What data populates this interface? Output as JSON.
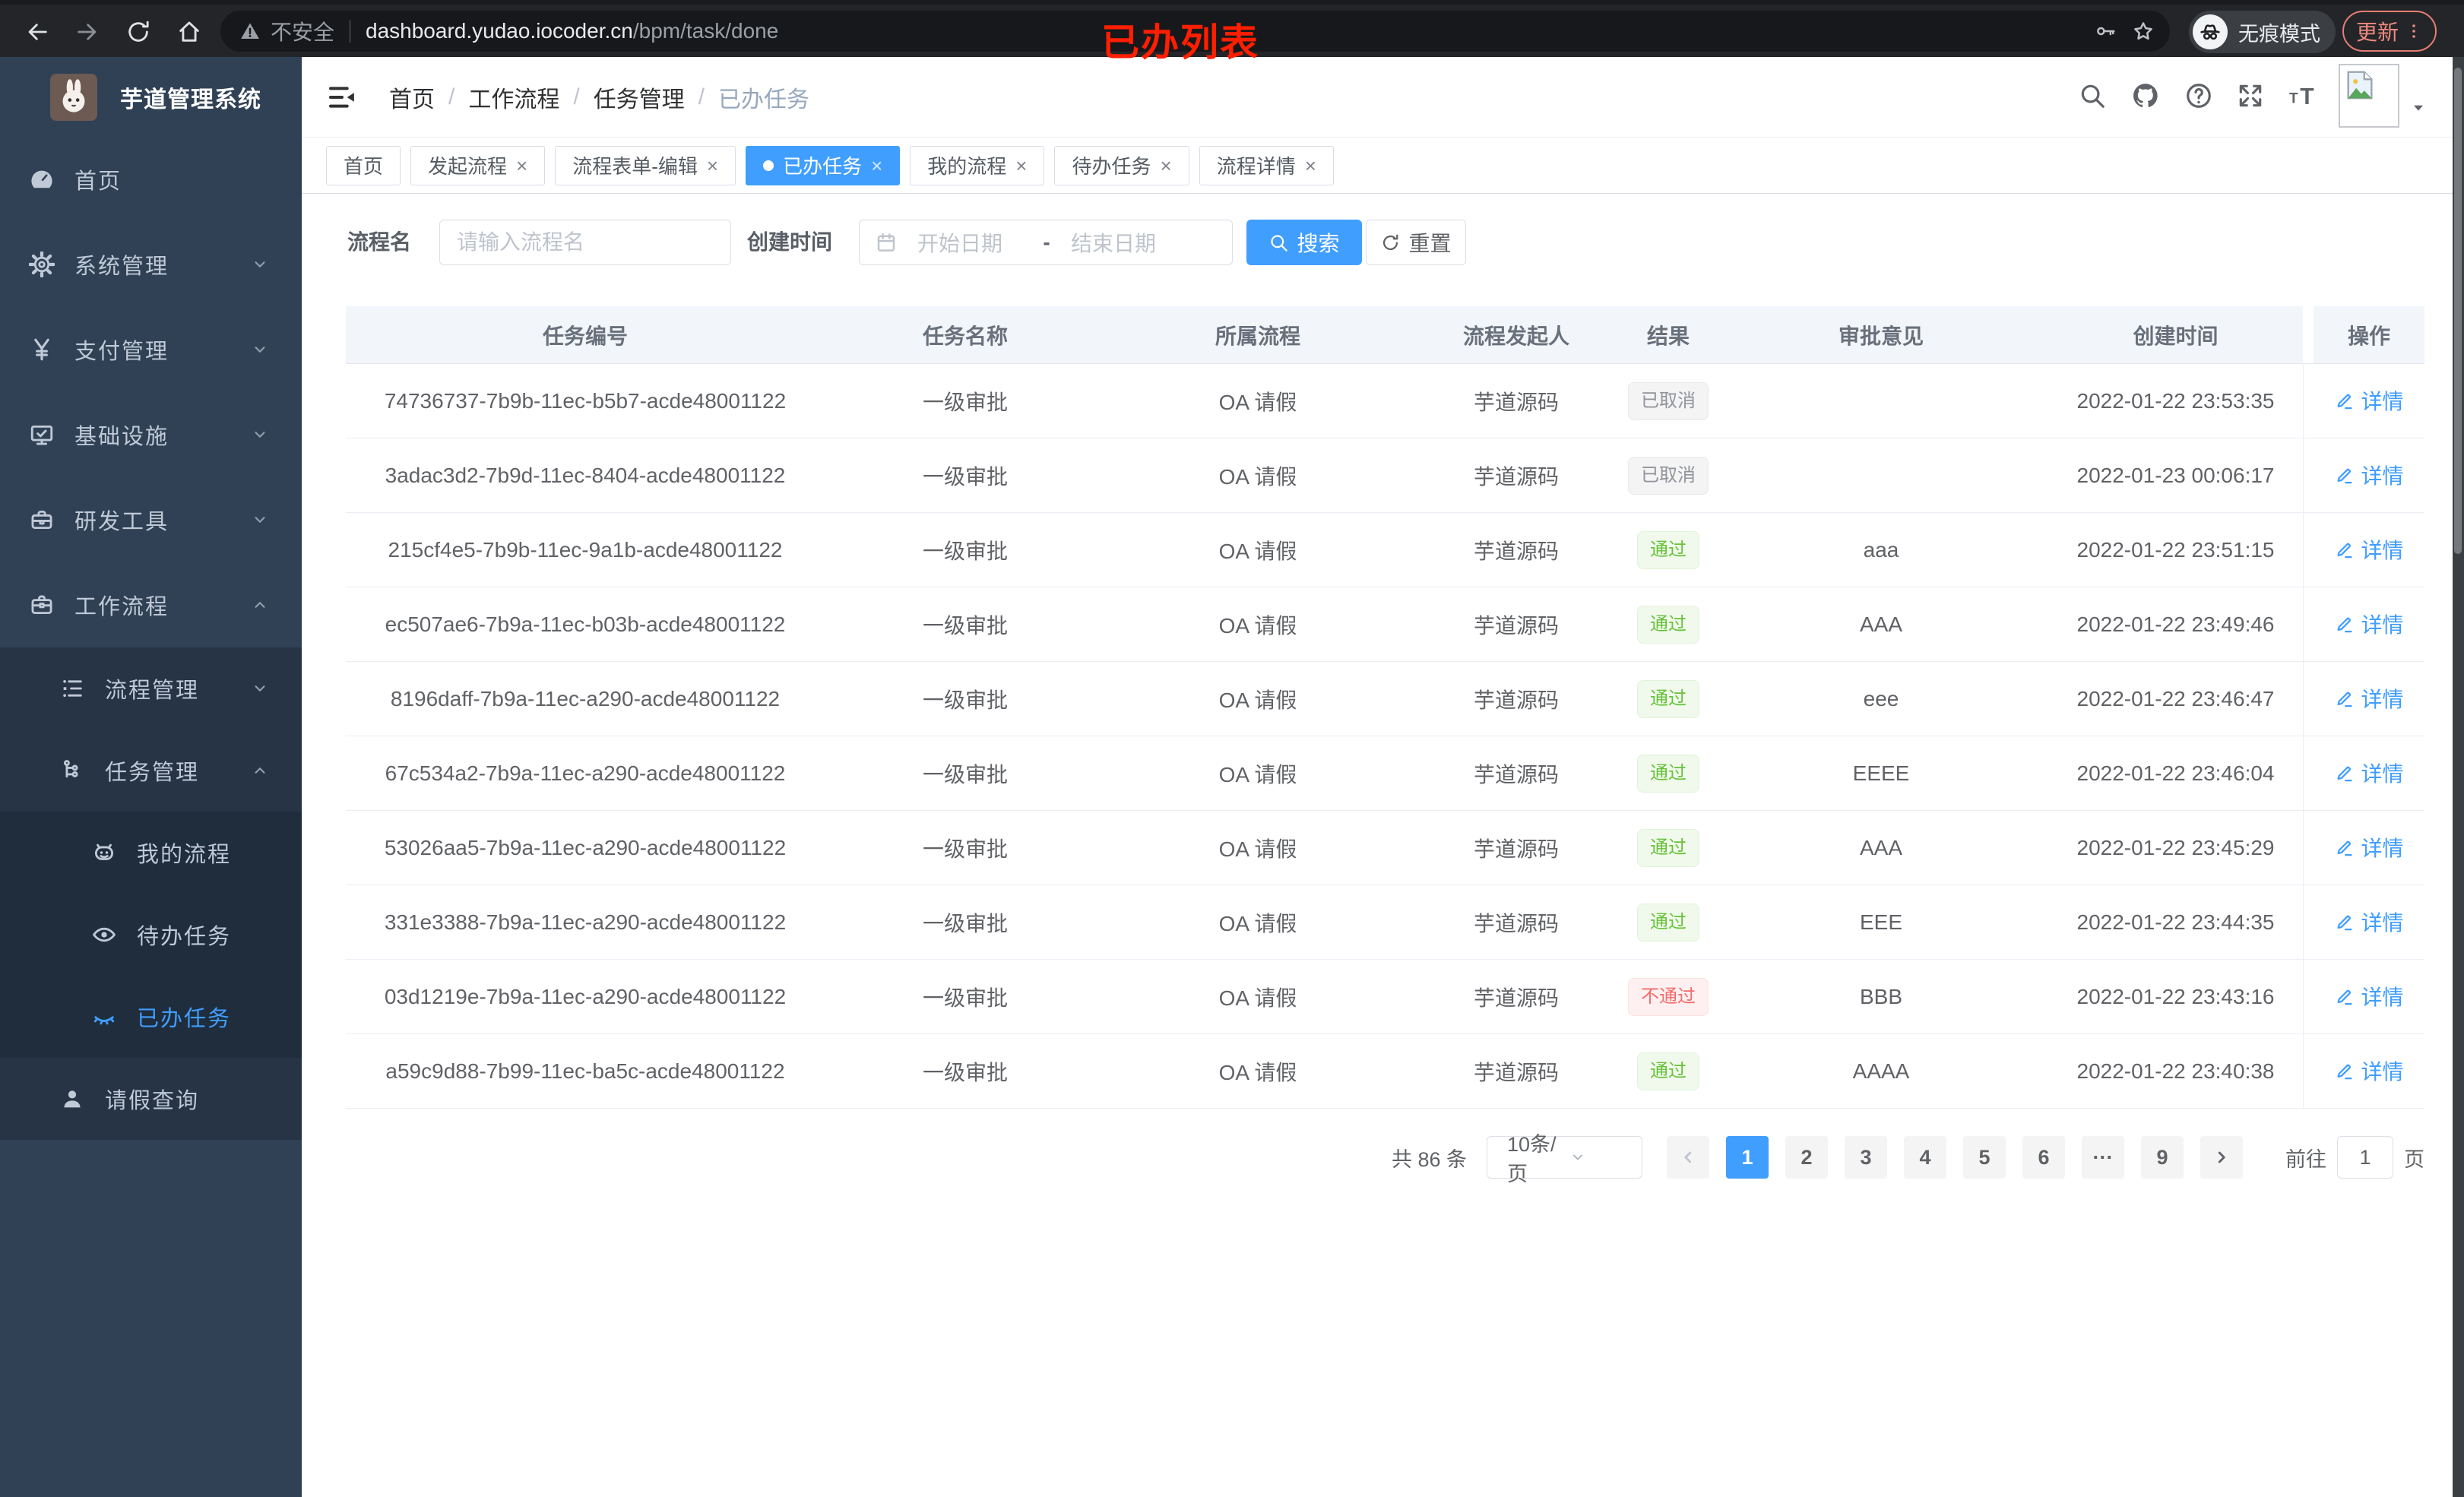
{
  "browser": {
    "security_label": "不安全",
    "url_host": "dashboard.yudao.iocoder.cn",
    "url_path": "/bpm/task/done",
    "incognito_label": "无痕模式",
    "update_label": "更新"
  },
  "annotation": {
    "text": "已办列表"
  },
  "sidebar": {
    "title": "芋道管理系统",
    "menu": [
      {
        "key": "home",
        "label": "首页",
        "icon": "dashboard-icon",
        "level": 1
      },
      {
        "key": "system",
        "label": "系统管理",
        "icon": "gear-icon",
        "level": 1,
        "chevron": "down"
      },
      {
        "key": "payment",
        "label": "支付管理",
        "icon": "yen-icon",
        "level": 1,
        "chevron": "down"
      },
      {
        "key": "infrastructure",
        "label": "基础设施",
        "icon": "monitor-icon",
        "level": 1,
        "chevron": "down"
      },
      {
        "key": "dev-tools",
        "label": "研发工具",
        "icon": "toolbox-icon",
        "level": 1,
        "chevron": "down"
      },
      {
        "key": "workflow",
        "label": "工作流程",
        "icon": "briefcase-icon",
        "level": 1,
        "chevron": "up"
      },
      {
        "key": "process-management",
        "label": "流程管理",
        "icon": "list-icon",
        "level": 2,
        "chevron": "down"
      },
      {
        "key": "task-management",
        "label": "任务管理",
        "icon": "flow-icon",
        "level": 2,
        "chevron": "up"
      },
      {
        "key": "my-process",
        "label": "我的流程",
        "icon": "robot-icon",
        "level": 3
      },
      {
        "key": "todo-tasks",
        "label": "待办任务",
        "icon": "eye-icon",
        "level": 3
      },
      {
        "key": "done-tasks",
        "label": "已办任务",
        "icon": "eye-closed-icon",
        "level": 3,
        "active": true
      },
      {
        "key": "leave-query",
        "label": "请假查询",
        "icon": "user-icon",
        "level": 2
      }
    ]
  },
  "topbar": {
    "breadcrumb": [
      "首页",
      "工作流程",
      "任务管理",
      "已办任务"
    ],
    "icons": [
      "search-icon",
      "github-icon",
      "help-icon",
      "fullscreen-icon",
      "font-size-icon"
    ]
  },
  "tabs": [
    {
      "key": "home",
      "label": "首页",
      "closable": false
    },
    {
      "key": "start-process",
      "label": "发起流程",
      "closable": true
    },
    {
      "key": "process-form-edit",
      "label": "流程表单-编辑",
      "closable": true
    },
    {
      "key": "done-tasks",
      "label": "已办任务",
      "closable": true,
      "active": true
    },
    {
      "key": "my-process",
      "label": "我的流程",
      "closable": true
    },
    {
      "key": "todo-tasks",
      "label": "待办任务",
      "closable": true
    },
    {
      "key": "process-detail",
      "label": "流程详情",
      "closable": true
    }
  ],
  "filters": {
    "name_label": "流程名",
    "name_placeholder": "请输入流程名",
    "time_label": "创建时间",
    "start_placeholder": "开始日期",
    "range_separator": "-",
    "end_placeholder": "结束日期",
    "search_label": "搜索",
    "reset_label": "重置"
  },
  "table": {
    "columns": [
      "任务编号",
      "任务名称",
      "所属流程",
      "流程发起人",
      "结果",
      "审批意见",
      "创建时间",
      "操作"
    ],
    "action_label": "详情",
    "rows": [
      {
        "id": "74736737-7b9b-11ec-b5b7-acde48001122",
        "name": "一级审批",
        "process": "OA 请假",
        "starter": "芋道源码",
        "result": "已取消",
        "comment": "",
        "time": "2022-01-22 23:53:35"
      },
      {
        "id": "3adac3d2-7b9d-11ec-8404-acde48001122",
        "name": "一级审批",
        "process": "OA 请假",
        "starter": "芋道源码",
        "result": "已取消",
        "comment": "",
        "time": "2022-01-23 00:06:17"
      },
      {
        "id": "215cf4e5-7b9b-11ec-9a1b-acde48001122",
        "name": "一级审批",
        "process": "OA 请假",
        "starter": "芋道源码",
        "result": "通过",
        "comment": "aaa",
        "time": "2022-01-22 23:51:15"
      },
      {
        "id": "ec507ae6-7b9a-11ec-b03b-acde48001122",
        "name": "一级审批",
        "process": "OA 请假",
        "starter": "芋道源码",
        "result": "通过",
        "comment": "AAA",
        "time": "2022-01-22 23:49:46"
      },
      {
        "id": "8196daff-7b9a-11ec-a290-acde48001122",
        "name": "一级审批",
        "process": "OA 请假",
        "starter": "芋道源码",
        "result": "通过",
        "comment": "eee",
        "time": "2022-01-22 23:46:47"
      },
      {
        "id": "67c534a2-7b9a-11ec-a290-acde48001122",
        "name": "一级审批",
        "process": "OA 请假",
        "starter": "芋道源码",
        "result": "通过",
        "comment": "EEEE",
        "time": "2022-01-22 23:46:04"
      },
      {
        "id": "53026aa5-7b9a-11ec-a290-acde48001122",
        "name": "一级审批",
        "process": "OA 请假",
        "starter": "芋道源码",
        "result": "通过",
        "comment": "AAA",
        "time": "2022-01-22 23:45:29"
      },
      {
        "id": "331e3388-7b9a-11ec-a290-acde48001122",
        "name": "一级审批",
        "process": "OA 请假",
        "starter": "芋道源码",
        "result": "通过",
        "comment": "EEE",
        "time": "2022-01-22 23:44:35"
      },
      {
        "id": "03d1219e-7b9a-11ec-a290-acde48001122",
        "name": "一级审批",
        "process": "OA 请假",
        "starter": "芋道源码",
        "result": "不通过",
        "comment": "BBB",
        "time": "2022-01-22 23:43:16"
      },
      {
        "id": "a59c9d88-7b99-11ec-ba5c-acde48001122",
        "name": "一级审批",
        "process": "OA 请假",
        "starter": "芋道源码",
        "result": "通过",
        "comment": "AAAA",
        "time": "2022-01-22 23:40:38"
      }
    ]
  },
  "pagination": {
    "total_text": "共 86 条",
    "page_size_label": "10条/页",
    "pages": [
      "1",
      "2",
      "3",
      "4",
      "5",
      "6",
      "···",
      "9"
    ],
    "active_page": "1",
    "goto_label": "前往",
    "goto_value": "1",
    "goto_suffix": "页"
  },
  "colors": {
    "primary": "#409eff",
    "success": "#67c23a",
    "danger": "#f56c6c",
    "info": "#909399",
    "sidebar": "#304156"
  }
}
